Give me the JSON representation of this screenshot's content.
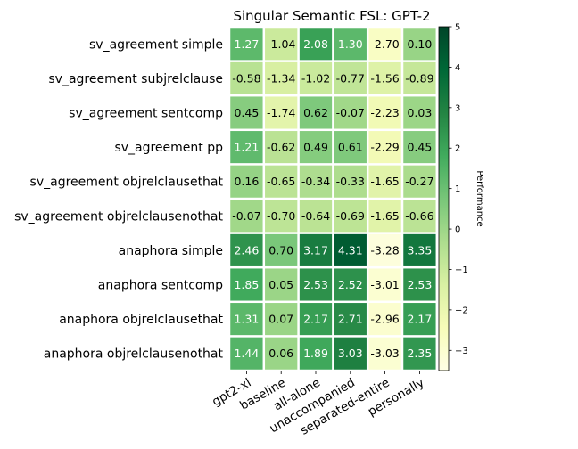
{
  "chart_data": {
    "type": "heatmap",
    "title": "Singular Semantic FSL: GPT-2",
    "rows": [
      "sv_agreement simple",
      "sv_agreement subjrelclause",
      "sv_agreement sentcomp",
      "sv_agreement pp",
      "sv_agreement objrelclausethat",
      "sv_agreement objrelclausenothat",
      "anaphora simple",
      "anaphora sentcomp",
      "anaphora objrelclausethat",
      "anaphora objrelclausenothat"
    ],
    "columns": [
      "gpt2-xl",
      "baseline",
      "all-alone",
      "unaccompanied",
      "separated-entire",
      "personally"
    ],
    "values": [
      [
        1.27,
        -1.04,
        2.08,
        1.3,
        -2.7,
        0.1
      ],
      [
        -0.58,
        -1.34,
        -1.02,
        -0.77,
        -1.56,
        -0.89
      ],
      [
        0.45,
        -1.74,
        0.62,
        -0.07,
        -2.23,
        0.03
      ],
      [
        1.21,
        -0.62,
        0.49,
        0.61,
        -2.29,
        0.45
      ],
      [
        0.16,
        -0.65,
        -0.34,
        -0.33,
        -1.65,
        -0.27
      ],
      [
        -0.07,
        -0.7,
        -0.64,
        -0.69,
        -1.65,
        -0.66
      ],
      [
        2.46,
        0.7,
        3.17,
        4.31,
        -3.28,
        3.35
      ],
      [
        1.85,
        0.05,
        2.53,
        2.52,
        -3.01,
        2.53
      ],
      [
        1.31,
        0.07,
        2.17,
        2.71,
        -2.96,
        2.17
      ],
      [
        1.44,
        0.06,
        1.89,
        3.03,
        -3.03,
        2.35
      ]
    ],
    "labels": [
      [
        "1.27",
        "-1.04",
        "2.08",
        "1.30",
        "-2.70",
        "0.10"
      ],
      [
        "-0.58",
        "-1.34",
        "-1.02",
        "-0.77",
        "-1.56",
        "-0.89"
      ],
      [
        "0.45",
        "-1.74",
        "0.62",
        "-0.07",
        "-2.23",
        "0.03"
      ],
      [
        "1.21",
        "-0.62",
        "0.49",
        "0.61",
        "-2.29",
        "0.45"
      ],
      [
        "0.16",
        "-0.65",
        "-0.34",
        "-0.33",
        "-1.65",
        "-0.27"
      ],
      [
        "-0.07",
        "-0.70",
        "-0.64",
        "-0.69",
        "-1.65",
        "-0.66"
      ],
      [
        "2.46",
        "0.70",
        "3.17",
        "4.31",
        "-3.28",
        "3.35"
      ],
      [
        "1.85",
        "0.05",
        "2.53",
        "2.52",
        "-3.01",
        "2.53"
      ],
      [
        "1.31",
        "0.07",
        "2.17",
        "2.71",
        "-2.96",
        "2.17"
      ],
      [
        "1.44",
        "0.06",
        "1.89",
        "3.03",
        "-3.03",
        "2.35"
      ]
    ],
    "colorbar": {
      "label": "Performance",
      "vmin": -3.5,
      "vmax": 5,
      "ticks": [
        5,
        4,
        3,
        2,
        1,
        0,
        -1,
        -2,
        -3
      ],
      "tick_labels": [
        "5",
        "4",
        "3",
        "2",
        "1",
        "0",
        "−1",
        "−2",
        "−3"
      ],
      "colormap": [
        "#ffffe5",
        "#f7fcb9",
        "#d9f0a3",
        "#addd8e",
        "#78c679",
        "#41ab5d",
        "#238443",
        "#006837",
        "#004529"
      ]
    },
    "text_color_light": "#ffffff",
    "text_color_dark": "#000000",
    "grid_color": "#ffffff"
  }
}
